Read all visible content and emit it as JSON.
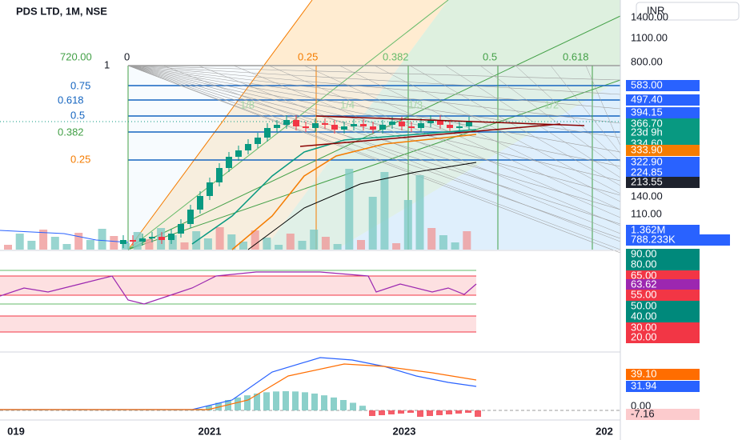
{
  "header": {
    "title": "PDS LTD, 1M, NSE",
    "currency": "INR"
  },
  "price_axis": [
    {
      "label": "1400.00"
    },
    {
      "label": "1100.00"
    },
    {
      "label": "800.00"
    },
    {
      "label": "583.00",
      "bg": "#2962ff"
    },
    {
      "label": "497.40",
      "bg": "#2962ff"
    },
    {
      "label": "394.15",
      "bg": "#2962ff"
    },
    {
      "label": "366.70",
      "bg": "#089981"
    },
    {
      "label": "23d 9h",
      "bg": "#089981"
    },
    {
      "label": "334.60",
      "bg": "#089981"
    },
    {
      "label": "333.90",
      "bg": "#f57c00"
    },
    {
      "label": "322.90",
      "bg": "#2962ff"
    },
    {
      "label": "224.85",
      "bg": "#2962ff"
    },
    {
      "label": "213.55",
      "bg": "#1e222d"
    },
    {
      "label": "140.00"
    },
    {
      "label": "110.00"
    },
    {
      "label": "1.362M",
      "bg": "#2962ff"
    },
    {
      "label": "788.233K",
      "bg": "#2962ff"
    }
  ],
  "rsi_axis": [
    {
      "label": "90.00",
      "bg": "#00897b"
    },
    {
      "label": "80.00",
      "bg": "#00897b"
    },
    {
      "label": "65.00",
      "bg": "#f23645"
    },
    {
      "label": "63.62",
      "bg": "#9c27b0"
    },
    {
      "label": "55.00",
      "bg": "#f23645"
    },
    {
      "label": "50.00",
      "bg": "#00897b"
    },
    {
      "label": "40.00",
      "bg": "#00897b"
    },
    {
      "label": "30.00",
      "bg": "#f23645"
    },
    {
      "label": "20.00",
      "bg": "#f23645"
    }
  ],
  "macd_axis": [
    {
      "label": "39.10",
      "bg": "#ff6d00"
    },
    {
      "label": "31.94",
      "bg": "#2962ff"
    },
    {
      "label": "0.00"
    },
    {
      "label": "-7.16",
      "bg": "#fccbcd"
    }
  ],
  "time_axis": [
    "019",
    "2021",
    "2023",
    "202"
  ],
  "fib_price_labels": [
    "720.00",
    "1",
    "0.75",
    "0.618",
    "0.5",
    "0.382",
    "0.25"
  ],
  "fib_time_labels": [
    "0",
    "0.25",
    "0.382",
    "0.5",
    "0.618"
  ],
  "fan_labels": [
    "1/8",
    "1/4",
    "1/3",
    "1/2"
  ]
}
